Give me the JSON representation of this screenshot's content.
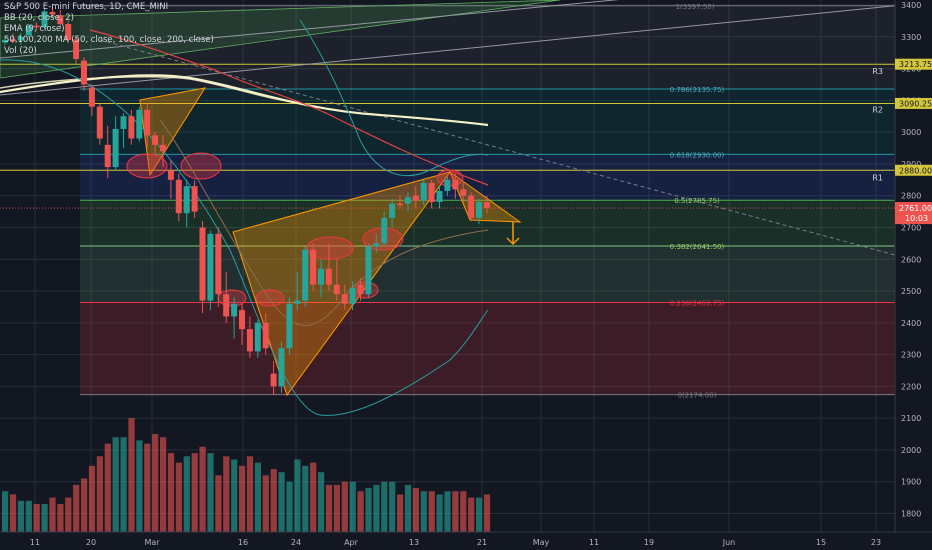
{
  "legend": {
    "title": "S&P 500 E-mini Futures, 1D, CME_MINI",
    "bb": "BB (20, close, 2)",
    "ema": "EMA (9, close)",
    "ma": "50,100,200 MA (50, close, 100, close, 200, close)",
    "vol": "Vol (20)"
  },
  "colors": {
    "background": "#131722",
    "up": "#26a69a",
    "down": "#ef5350",
    "ma200": "#f5f0c8",
    "ma50": "#e0443e",
    "bb": "#2a9d9d",
    "ema": "#8d6e4f",
    "grid": "#2a2e39",
    "pivot": "#d4c63a"
  },
  "price_axis": {
    "ticks": [
      1800,
      1900,
      2000,
      2100,
      2200,
      2300,
      2400,
      2500,
      2600,
      2700,
      2800,
      2900,
      3000,
      3100,
      3200,
      3300,
      3400
    ],
    "current_price": "2761.00",
    "countdown": "10:03"
  },
  "time_axis": {
    "labels": [
      "11",
      "20",
      "Mar",
      "16",
      "24",
      "Apr",
      "13",
      "21",
      "May",
      "11",
      "19",
      "Jun",
      "15",
      "23"
    ]
  },
  "pivots": [
    {
      "name": "R3",
      "value": "3213.75"
    },
    {
      "name": "R2",
      "value": "3090.25"
    },
    {
      "name": "R1",
      "value": "2880.00"
    }
  ],
  "fib_levels": [
    {
      "ratio": "1",
      "label": "1(3397.50)",
      "price": 3397.5
    },
    {
      "ratio": "0.786",
      "label": "0.786(3135.75)",
      "price": 3135.75
    },
    {
      "ratio": "0.618",
      "label": "0.618(2930.00)",
      "price": 2930.0
    },
    {
      "ratio": "0.5",
      "label": "0.5(2785.75)",
      "price": 2785.75
    },
    {
      "ratio": "0.382",
      "label": "0.382(2641.50)",
      "price": 2641.5
    },
    {
      "ratio": "0.236",
      "label": "0.236(2463.75)",
      "price": 2463.75
    },
    {
      "ratio": "0",
      "label": "0(2174.00)",
      "price": 2174.0
    }
  ],
  "chart_data": {
    "type": "candlestick",
    "title": "S&P 500 E-mini Futures, 1D, CME_MINI",
    "ylim": [
      1740,
      3420
    ],
    "candles": [
      {
        "o": 3282,
        "h": 3300,
        "l": 3275,
        "c": 3290
      },
      {
        "o": 3292,
        "h": 3310,
        "l": 3280,
        "c": 3286
      },
      {
        "o": 3288,
        "h": 3312,
        "l": 3275,
        "c": 3300
      },
      {
        "o": 3305,
        "h": 3340,
        "l": 3300,
        "c": 3335
      },
      {
        "o": 3335,
        "h": 3345,
        "l": 3320,
        "c": 3330
      },
      {
        "o": 3330,
        "h": 3390,
        "l": 3325,
        "c": 3380
      },
      {
        "o": 3378,
        "h": 3395,
        "l": 3360,
        "c": 3370
      },
      {
        "o": 3368,
        "h": 3385,
        "l": 3330,
        "c": 3340
      },
      {
        "o": 3340,
        "h": 3350,
        "l": 3280,
        "c": 3290
      },
      {
        "o": 3292,
        "h": 3300,
        "l": 3215,
        "c": 3230
      },
      {
        "o": 3225,
        "h": 3235,
        "l": 3130,
        "c": 3150
      },
      {
        "o": 3140,
        "h": 3150,
        "l": 3050,
        "c": 3080
      },
      {
        "o": 3080,
        "h": 3090,
        "l": 2960,
        "c": 2980
      },
      {
        "o": 2960,
        "h": 3020,
        "l": 2855,
        "c": 2890
      },
      {
        "o": 2890,
        "h": 3050,
        "l": 2880,
        "c": 3010
      },
      {
        "o": 3010,
        "h": 3060,
        "l": 2950,
        "c": 3050
      },
      {
        "o": 3050,
        "h": 3070,
        "l": 2960,
        "c": 2980
      },
      {
        "o": 2980,
        "h": 3080,
        "l": 2970,
        "c": 3070
      },
      {
        "o": 3070,
        "h": 3090,
        "l": 2950,
        "c": 2990
      },
      {
        "o": 2990,
        "h": 3000,
        "l": 2930,
        "c": 2960
      },
      {
        "o": 2960,
        "h": 2990,
        "l": 2890,
        "c": 2940
      },
      {
        "o": 2880,
        "h": 2910,
        "l": 2790,
        "c": 2850
      },
      {
        "o": 2850,
        "h": 2870,
        "l": 2720,
        "c": 2745
      },
      {
        "o": 2745,
        "h": 2850,
        "l": 2700,
        "c": 2830
      },
      {
        "o": 2830,
        "h": 2850,
        "l": 2730,
        "c": 2750
      },
      {
        "o": 2700,
        "h": 2720,
        "l": 2430,
        "c": 2470
      },
      {
        "o": 2470,
        "h": 2690,
        "l": 2440,
        "c": 2680
      },
      {
        "o": 2680,
        "h": 2700,
        "l": 2450,
        "c": 2490
      },
      {
        "o": 2490,
        "h": 2560,
        "l": 2400,
        "c": 2420
      },
      {
        "o": 2420,
        "h": 2480,
        "l": 2350,
        "c": 2460
      },
      {
        "o": 2440,
        "h": 2460,
        "l": 2330,
        "c": 2380
      },
      {
        "o": 2380,
        "h": 2420,
        "l": 2290,
        "c": 2310
      },
      {
        "o": 2310,
        "h": 2410,
        "l": 2290,
        "c": 2400
      },
      {
        "o": 2400,
        "h": 2430,
        "l": 2300,
        "c": 2320
      },
      {
        "o": 2240,
        "h": 2280,
        "l": 2174,
        "c": 2200
      },
      {
        "o": 2200,
        "h": 2340,
        "l": 2180,
        "c": 2320
      },
      {
        "o": 2320,
        "h": 2480,
        "l": 2300,
        "c": 2460
      },
      {
        "o": 2460,
        "h": 2560,
        "l": 2440,
        "c": 2470
      },
      {
        "o": 2470,
        "h": 2640,
        "l": 2450,
        "c": 2630
      },
      {
        "o": 2630,
        "h": 2650,
        "l": 2500,
        "c": 2520
      },
      {
        "o": 2520,
        "h": 2600,
        "l": 2480,
        "c": 2570
      },
      {
        "o": 2570,
        "h": 2650,
        "l": 2500,
        "c": 2520
      },
      {
        "o": 2520,
        "h": 2600,
        "l": 2470,
        "c": 2490
      },
      {
        "o": 2490,
        "h": 2520,
        "l": 2440,
        "c": 2460
      },
      {
        "o": 2460,
        "h": 2530,
        "l": 2440,
        "c": 2510
      },
      {
        "o": 2520,
        "h": 2540,
        "l": 2470,
        "c": 2490
      },
      {
        "o": 2490,
        "h": 2650,
        "l": 2480,
        "c": 2640
      },
      {
        "o": 2640,
        "h": 2680,
        "l": 2620,
        "c": 2650
      },
      {
        "o": 2650,
        "h": 2750,
        "l": 2640,
        "c": 2730
      },
      {
        "o": 2730,
        "h": 2790,
        "l": 2700,
        "c": 2775
      },
      {
        "o": 2775,
        "h": 2800,
        "l": 2760,
        "c": 2770
      },
      {
        "o": 2775,
        "h": 2810,
        "l": 2750,
        "c": 2795
      },
      {
        "o": 2800,
        "h": 2830,
        "l": 2760,
        "c": 2785
      },
      {
        "o": 2785,
        "h": 2850,
        "l": 2770,
        "c": 2840
      },
      {
        "o": 2840,
        "h": 2850,
        "l": 2760,
        "c": 2780
      },
      {
        "o": 2780,
        "h": 2830,
        "l": 2760,
        "c": 2815
      },
      {
        "o": 2815,
        "h": 2860,
        "l": 2800,
        "c": 2850
      },
      {
        "o": 2850,
        "h": 2870,
        "l": 2790,
        "c": 2820
      },
      {
        "o": 2820,
        "h": 2840,
        "l": 2780,
        "c": 2800
      },
      {
        "o": 2800,
        "h": 2810,
        "l": 2720,
        "c": 2730
      },
      {
        "o": 2730,
        "h": 2790,
        "l": 2710,
        "c": 2780
      },
      {
        "o": 2780,
        "h": 2800,
        "l": 2745,
        "c": 2761
      }
    ],
    "volume": [
      1870,
      1860,
      1840,
      1840,
      1830,
      1830,
      1850,
      1830,
      1850,
      1890,
      1910,
      1950,
      1980,
      2020,
      2040,
      2040,
      2100,
      2030,
      2020,
      2050,
      2040,
      1990,
      1960,
      1980,
      1990,
      2010,
      1990,
      1920,
      1980,
      1970,
      1950,
      1980,
      1960,
      1920,
      1940,
      1930,
      1900,
      1970,
      1950,
      1960,
      1930,
      1890,
      1890,
      1900,
      1900,
      1870,
      1880,
      1890,
      1900,
      1900,
      1860,
      1890,
      1880,
      1870,
      1870,
      1860,
      1870,
      1870,
      1870,
      1850,
      1850,
      1860
    ]
  }
}
